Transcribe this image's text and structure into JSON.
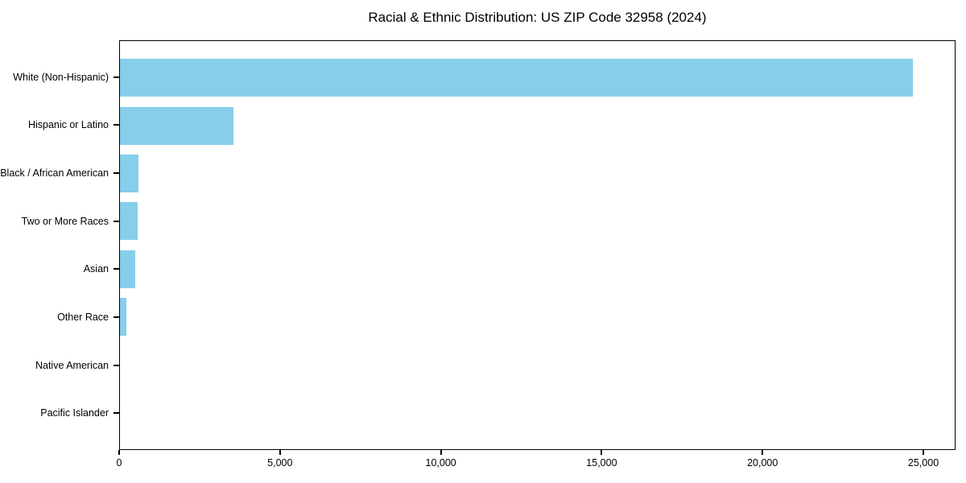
{
  "chart_data": {
    "type": "bar",
    "orientation": "horizontal",
    "title": "Racial & Ethnic Distribution: US ZIP Code 32958 (2024)",
    "categories": [
      "White (Non-Hispanic)",
      "Hispanic or Latino",
      "Black / African American",
      "Two or More Races",
      "Asian",
      "Other Race",
      "Native American",
      "Pacific Islander"
    ],
    "values": [
      24700,
      3530,
      580,
      550,
      480,
      210,
      0,
      0
    ],
    "xlabel": "",
    "ylabel": "",
    "xlim": [
      0,
      26000
    ],
    "xticks": [
      0,
      5000,
      10000,
      15000,
      20000,
      25000
    ],
    "xtick_labels": [
      "0",
      "5,000",
      "10,000",
      "15,000",
      "20,000",
      "25,000"
    ],
    "grid": false,
    "legend_position": "none",
    "bar_color": "#87CEEB",
    "background_color": "#FFFFFF",
    "spine_color": "#000000",
    "text_color": "#000000"
  }
}
